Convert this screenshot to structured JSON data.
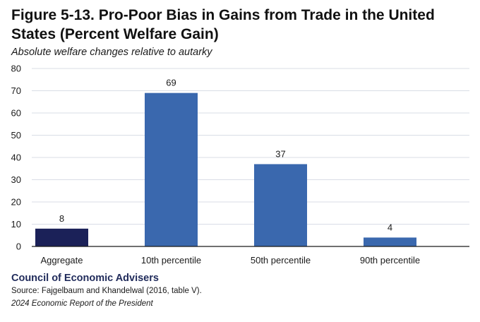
{
  "figure": {
    "title": "Figure 5-13. Pro-Poor Bias in Gains from Trade in the United States (Percent Welfare Gain)",
    "subtitle": "Absolute welfare changes relative to autarky"
  },
  "footer": {
    "organization": "Council of Economic Advisers",
    "source": "Source: Fajgelbaum and Khandelwal (2016, table V).",
    "report": "2024 Economic Report of the President"
  },
  "colors": {
    "aggregate_bar": "#1b2158",
    "percentile_bar": "#3a68ae",
    "gridline": "#d9dde6"
  },
  "chart_data": {
    "type": "bar",
    "categories": [
      "Aggregate",
      "10th percentile",
      "50th percentile",
      "90th percentile"
    ],
    "values": [
      8,
      69,
      37,
      4
    ],
    "data_labels": [
      "8",
      "69",
      "37",
      "4"
    ],
    "bar_colors": [
      "#1b2158",
      "#3a68ae",
      "#3a68ae",
      "#3a68ae"
    ],
    "title": "Figure 5-13. Pro-Poor Bias in Gains from Trade in the United States (Percent Welfare Gain)",
    "subtitle": "Absolute welfare changes relative to autarky",
    "xlabel": "",
    "ylabel": "",
    "ylim": [
      0,
      80
    ],
    "yticks": [
      0,
      10,
      20,
      30,
      40,
      50,
      60,
      70,
      80
    ],
    "grid": true,
    "legend": "none"
  }
}
